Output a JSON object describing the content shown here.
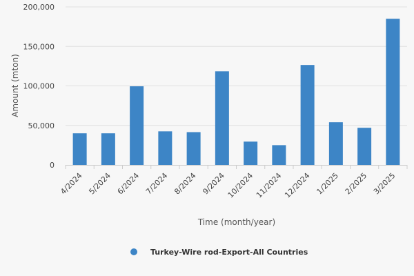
{
  "chart_data": {
    "type": "bar",
    "categories": [
      "4/2024",
      "5/2024",
      "6/2024",
      "7/2024",
      "8/2024",
      "9/2024",
      "10/2024",
      "11/2024",
      "12/2024",
      "1/2025",
      "2/2025",
      "3/2025"
    ],
    "series": [
      {
        "name": "Turkey-Wire rod-Export-All Countries",
        "values": [
          40000,
          40000,
          99500,
          42500,
          41500,
          118500,
          29500,
          25000,
          126500,
          54000,
          47000,
          185000
        ],
        "color": "#3d85c6"
      }
    ],
    "xlabel": "Time (month/year)",
    "ylabel": "Amount (mton)",
    "ylim": [
      0,
      200000
    ],
    "yticks": [
      0,
      50000,
      100000,
      150000,
      200000
    ],
    "ytick_labels": [
      "0",
      "50,000",
      "100,000",
      "150,000",
      "200,000"
    ],
    "grid": true,
    "legend_position": "bottom-center",
    "background_color": "#f7f7f7",
    "grid_color": "#e0e0e0"
  }
}
